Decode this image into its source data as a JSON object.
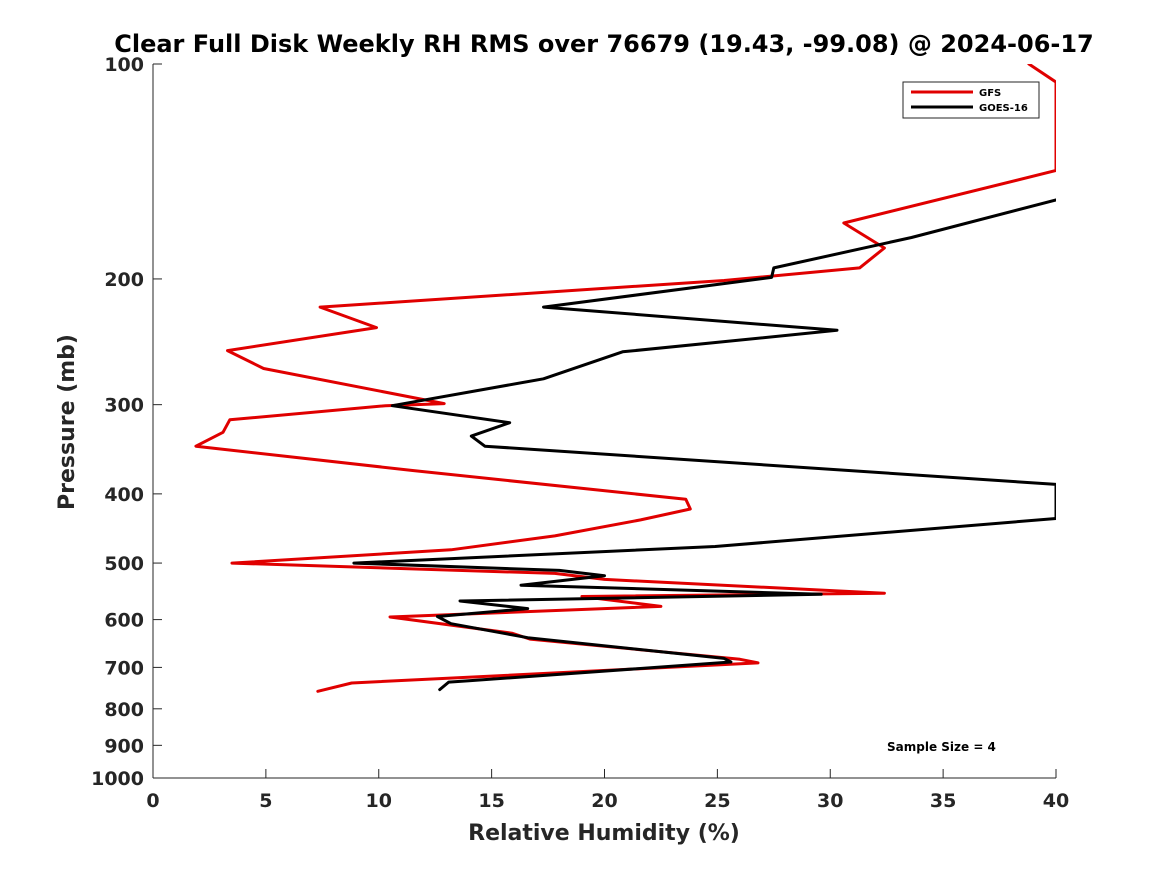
{
  "chart_data": {
    "type": "line",
    "title": "Clear Full Disk Weekly RH RMS over 76679 (19.43, -99.08) @ 2024-06-17",
    "xlabel": "Relative Humidity (%)",
    "ylabel": "Pressure (mb)",
    "xlim": [
      0,
      40
    ],
    "ylim": [
      100,
      1000
    ],
    "yscale": "log",
    "y_reversed": true,
    "x_ticks": [
      0,
      5,
      10,
      15,
      20,
      25,
      30,
      35,
      40
    ],
    "x_tick_labels": [
      "0",
      "5",
      "10",
      "15",
      "20",
      "25",
      "30",
      "35",
      "40"
    ],
    "y_ticks": [
      100,
      200,
      300,
      400,
      500,
      600,
      700,
      800,
      900,
      1000
    ],
    "y_tick_labels": [
      "100",
      "200",
      "300",
      "400",
      "500",
      "600",
      "700",
      "800",
      "900",
      "1000"
    ],
    "grid": false,
    "legend_position": "top-right",
    "annotation": "Sample Size = 4",
    "series": [
      {
        "name": "GFS",
        "color": "#e00000",
        "x": [
          38.8,
          40.0,
          40.0,
          30.6,
          32.4,
          31.3,
          25.3,
          7.4,
          9.9,
          3.3,
          4.9,
          12.9,
          10.3,
          3.4,
          3.1,
          1.9,
          11.5,
          23.6,
          23.8,
          21.6,
          17.8,
          13.2,
          3.5,
          17.8,
          20.0,
          32.4,
          19.0,
          22.5,
          10.5,
          15.9,
          16.7,
          26.0,
          26.8,
          8.8,
          7.3
        ],
        "y": [
          100,
          106,
          141,
          167,
          181,
          193,
          201,
          219,
          234,
          252,
          267,
          299,
          301,
          315,
          328,
          343,
          371,
          407,
          420,
          435,
          458,
          479,
          500,
          517,
          527,
          551,
          557,
          575,
          595,
          627,
          639,
          682,
          690,
          736,
          756
        ]
      },
      {
        "name": "GOES-16",
        "color": "#000000",
        "x": [
          40.0,
          33.6,
          27.5,
          27.4,
          17.3,
          30.3,
          20.8,
          17.3,
          10.6,
          15.8,
          14.1,
          14.7,
          40.0,
          40.0,
          24.9,
          8.9,
          18.0,
          20.0,
          16.3,
          29.6,
          13.6,
          16.6,
          12.6,
          13.2,
          16.6,
          25.3,
          25.6,
          14.0,
          13.1,
          12.7
        ],
        "y": [
          155,
          175,
          193,
          199,
          219,
          236,
          253,
          276,
          301,
          318,
          332,
          343,
          388,
          433,
          474,
          500,
          512,
          521,
          537,
          553,
          565,
          579,
          594,
          608,
          636,
          680,
          688,
          731,
          734,
          752
        ]
      }
    ]
  }
}
